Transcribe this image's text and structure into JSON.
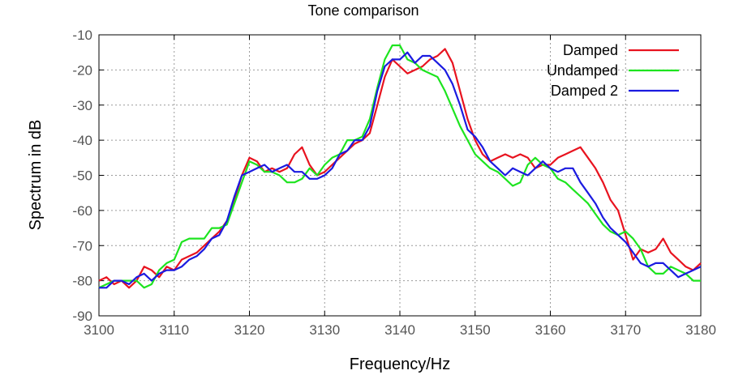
{
  "chart_data": {
    "type": "line",
    "title": "Tone comparison",
    "xlabel": "Frequency/Hz",
    "ylabel": "Spectrum in dB",
    "xlim": [
      3100,
      3180
    ],
    "ylim": [
      -90,
      -10
    ],
    "xticks": [
      3100,
      3110,
      3120,
      3130,
      3140,
      3150,
      3160,
      3170,
      3180
    ],
    "yticks": [
      -10,
      -20,
      -30,
      -40,
      -50,
      -60,
      -70,
      -80,
      -90
    ],
    "grid": true,
    "legend_position": "top-right",
    "series": [
      {
        "name": "Damped",
        "color": "#e8131f",
        "points": [
          [
            3100,
            -80
          ],
          [
            3101,
            -79
          ],
          [
            3102,
            -81
          ],
          [
            3103,
            -80
          ],
          [
            3104,
            -82
          ],
          [
            3105,
            -80
          ],
          [
            3106,
            -76
          ],
          [
            3107,
            -77
          ],
          [
            3108,
            -79
          ],
          [
            3109,
            -76
          ],
          [
            3110,
            -77
          ],
          [
            3111,
            -74
          ],
          [
            3112,
            -73
          ],
          [
            3113,
            -72
          ],
          [
            3114,
            -70
          ],
          [
            3115,
            -68
          ],
          [
            3116,
            -66
          ],
          [
            3117,
            -63
          ],
          [
            3118,
            -57
          ],
          [
            3119,
            -50
          ],
          [
            3120,
            -45
          ],
          [
            3121,
            -46
          ],
          [
            3122,
            -49
          ],
          [
            3123,
            -48
          ],
          [
            3124,
            -49
          ],
          [
            3125,
            -48
          ],
          [
            3126,
            -44
          ],
          [
            3127,
            -42
          ],
          [
            3128,
            -47
          ],
          [
            3129,
            -50
          ],
          [
            3130,
            -49
          ],
          [
            3131,
            -47
          ],
          [
            3132,
            -45
          ],
          [
            3133,
            -43
          ],
          [
            3134,
            -41
          ],
          [
            3135,
            -40
          ],
          [
            3136,
            -38
          ],
          [
            3137,
            -30
          ],
          [
            3138,
            -22
          ],
          [
            3139,
            -17
          ],
          [
            3140,
            -19
          ],
          [
            3141,
            -21
          ],
          [
            3142,
            -20
          ],
          [
            3143,
            -19
          ],
          [
            3144,
            -17
          ],
          [
            3145,
            -16
          ],
          [
            3146,
            -14
          ],
          [
            3147,
            -18
          ],
          [
            3148,
            -26
          ],
          [
            3149,
            -34
          ],
          [
            3150,
            -40
          ],
          [
            3151,
            -44
          ],
          [
            3152,
            -46
          ],
          [
            3153,
            -45
          ],
          [
            3154,
            -44
          ],
          [
            3155,
            -45
          ],
          [
            3156,
            -44
          ],
          [
            3157,
            -45
          ],
          [
            3158,
            -48
          ],
          [
            3159,
            -47
          ],
          [
            3160,
            -47
          ],
          [
            3161,
            -45
          ],
          [
            3162,
            -44
          ],
          [
            3163,
            -43
          ],
          [
            3164,
            -42
          ],
          [
            3165,
            -45
          ],
          [
            3166,
            -48
          ],
          [
            3167,
            -52
          ],
          [
            3168,
            -57
          ],
          [
            3169,
            -60
          ],
          [
            3170,
            -67
          ],
          [
            3171,
            -74
          ],
          [
            3172,
            -71
          ],
          [
            3173,
            -72
          ],
          [
            3174,
            -71
          ],
          [
            3175,
            -68
          ],
          [
            3176,
            -72
          ],
          [
            3177,
            -74
          ],
          [
            3178,
            -76
          ],
          [
            3179,
            -77
          ],
          [
            3180,
            -75
          ]
        ]
      },
      {
        "name": "Undamped",
        "color": "#1de41f",
        "points": [
          [
            3100,
            -82
          ],
          [
            3101,
            -81
          ],
          [
            3102,
            -80
          ],
          [
            3103,
            -80
          ],
          [
            3104,
            -80
          ],
          [
            3105,
            -80
          ],
          [
            3106,
            -82
          ],
          [
            3107,
            -81
          ],
          [
            3108,
            -77
          ],
          [
            3109,
            -75
          ],
          [
            3110,
            -74
          ],
          [
            3111,
            -69
          ],
          [
            3112,
            -68
          ],
          [
            3113,
            -68
          ],
          [
            3114,
            -68
          ],
          [
            3115,
            -65
          ],
          [
            3116,
            -65
          ],
          [
            3117,
            -64
          ],
          [
            3118,
            -58
          ],
          [
            3119,
            -52
          ],
          [
            3120,
            -46
          ],
          [
            3121,
            -47
          ],
          [
            3122,
            -49
          ],
          [
            3123,
            -49
          ],
          [
            3124,
            -50
          ],
          [
            3125,
            -52
          ],
          [
            3126,
            -52
          ],
          [
            3127,
            -51
          ],
          [
            3128,
            -48
          ],
          [
            3129,
            -50
          ],
          [
            3130,
            -47
          ],
          [
            3131,
            -45
          ],
          [
            3132,
            -44
          ],
          [
            3133,
            -40
          ],
          [
            3134,
            -40
          ],
          [
            3135,
            -39
          ],
          [
            3136,
            -34
          ],
          [
            3137,
            -25
          ],
          [
            3138,
            -17
          ],
          [
            3139,
            -13
          ],
          [
            3140,
            -13
          ],
          [
            3141,
            -17
          ],
          [
            3142,
            -18
          ],
          [
            3143,
            -20
          ],
          [
            3144,
            -21
          ],
          [
            3145,
            -22
          ],
          [
            3146,
            -26
          ],
          [
            3147,
            -31
          ],
          [
            3148,
            -36
          ],
          [
            3149,
            -40
          ],
          [
            3150,
            -44
          ],
          [
            3151,
            -46
          ],
          [
            3152,
            -48
          ],
          [
            3153,
            -49
          ],
          [
            3154,
            -51
          ],
          [
            3155,
            -53
          ],
          [
            3156,
            -52
          ],
          [
            3157,
            -47
          ],
          [
            3158,
            -45
          ],
          [
            3159,
            -47
          ],
          [
            3160,
            -48
          ],
          [
            3161,
            -51
          ],
          [
            3162,
            -52
          ],
          [
            3163,
            -54
          ],
          [
            3164,
            -56
          ],
          [
            3165,
            -58
          ],
          [
            3166,
            -61
          ],
          [
            3167,
            -64
          ],
          [
            3168,
            -66
          ],
          [
            3169,
            -67
          ],
          [
            3170,
            -66
          ],
          [
            3171,
            -68
          ],
          [
            3172,
            -71
          ],
          [
            3173,
            -76
          ],
          [
            3174,
            -78
          ],
          [
            3175,
            -78
          ],
          [
            3176,
            -76
          ],
          [
            3177,
            -77
          ],
          [
            3178,
            -78
          ],
          [
            3179,
            -80
          ],
          [
            3180,
            -80
          ]
        ]
      },
      {
        "name": "Damped 2",
        "color": "#1b1be0",
        "points": [
          [
            3100,
            -82
          ],
          [
            3101,
            -82
          ],
          [
            3102,
            -80
          ],
          [
            3103,
            -80
          ],
          [
            3104,
            -81
          ],
          [
            3105,
            -79
          ],
          [
            3106,
            -78
          ],
          [
            3107,
            -80
          ],
          [
            3108,
            -78
          ],
          [
            3109,
            -77
          ],
          [
            3110,
            -77
          ],
          [
            3111,
            -76
          ],
          [
            3112,
            -74
          ],
          [
            3113,
            -73
          ],
          [
            3114,
            -71
          ],
          [
            3115,
            -68
          ],
          [
            3116,
            -67
          ],
          [
            3117,
            -63
          ],
          [
            3118,
            -56
          ],
          [
            3119,
            -50
          ],
          [
            3120,
            -49
          ],
          [
            3121,
            -48
          ],
          [
            3122,
            -47
          ],
          [
            3123,
            -49
          ],
          [
            3124,
            -48
          ],
          [
            3125,
            -47
          ],
          [
            3126,
            -49
          ],
          [
            3127,
            -49
          ],
          [
            3128,
            -51
          ],
          [
            3129,
            -51
          ],
          [
            3130,
            -50
          ],
          [
            3131,
            -48
          ],
          [
            3132,
            -44
          ],
          [
            3133,
            -43
          ],
          [
            3134,
            -40
          ],
          [
            3135,
            -40
          ],
          [
            3136,
            -36
          ],
          [
            3137,
            -26
          ],
          [
            3138,
            -19
          ],
          [
            3139,
            -17
          ],
          [
            3140,
            -17
          ],
          [
            3141,
            -15
          ],
          [
            3142,
            -18
          ],
          [
            3143,
            -16
          ],
          [
            3144,
            -16
          ],
          [
            3145,
            -18
          ],
          [
            3146,
            -20
          ],
          [
            3147,
            -24
          ],
          [
            3148,
            -30
          ],
          [
            3149,
            -37
          ],
          [
            3150,
            -39
          ],
          [
            3151,
            -42
          ],
          [
            3152,
            -46
          ],
          [
            3153,
            -48
          ],
          [
            3154,
            -50
          ],
          [
            3155,
            -48
          ],
          [
            3156,
            -49
          ],
          [
            3157,
            -50
          ],
          [
            3158,
            -48
          ],
          [
            3159,
            -46
          ],
          [
            3160,
            -48
          ],
          [
            3161,
            -49
          ],
          [
            3162,
            -48
          ],
          [
            3163,
            -48
          ],
          [
            3164,
            -52
          ],
          [
            3165,
            -55
          ],
          [
            3166,
            -58
          ],
          [
            3167,
            -62
          ],
          [
            3168,
            -65
          ],
          [
            3169,
            -67
          ],
          [
            3170,
            -69
          ],
          [
            3171,
            -72
          ],
          [
            3172,
            -75
          ],
          [
            3173,
            -76
          ],
          [
            3174,
            -75
          ],
          [
            3175,
            -75
          ],
          [
            3176,
            -77
          ],
          [
            3177,
            -79
          ],
          [
            3178,
            -78
          ],
          [
            3179,
            -77
          ],
          [
            3180,
            -76
          ]
        ]
      }
    ]
  }
}
